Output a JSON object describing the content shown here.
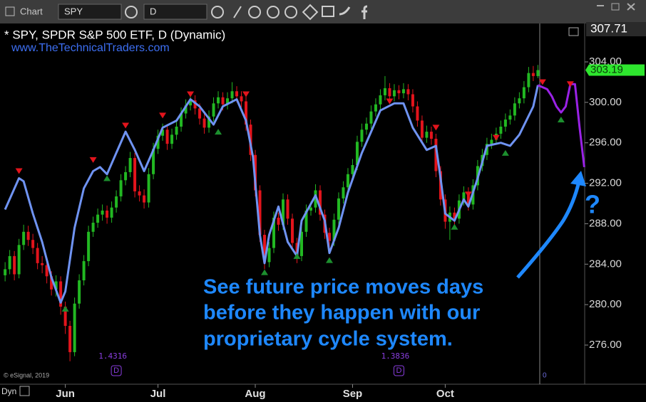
{
  "header": {
    "app": "Chart",
    "symbol": "SPY",
    "interval": "D"
  },
  "chart_data": {
    "type": "candlestick",
    "title": "* SPY, SPDR S&P 500 ETF, D (Dynamic)",
    "subtitle": "www.TheTechnicalTraders.com",
    "credit": "© eSignal, 2019",
    "mode": "Dyn",
    "annotation": [
      "See future price moves days",
      "before they happen with our",
      "proprietary cycle system."
    ],
    "question": "?",
    "studies": [
      {
        "label": "1.4316",
        "marker": "D",
        "x": 24
      },
      {
        "label": "1.3836",
        "marker": "D",
        "x": 85
      }
    ],
    "cursor_label": "0",
    "cursor_price": 307.71,
    "xlim": [
      -1.1,
      125.1
    ],
    "ylim": [
      272.13,
      307.8
    ],
    "xticks": [
      {
        "value": 13,
        "label": "Jun"
      },
      {
        "value": 33,
        "label": "Jul"
      },
      {
        "value": 54,
        "label": "Aug"
      },
      {
        "value": 75,
        "label": "Sep"
      },
      {
        "value": 95,
        "label": "Oct"
      }
    ],
    "yticks": [
      {
        "value": 276,
        "label": "276.00"
      },
      {
        "value": 280,
        "label": "280.00"
      },
      {
        "value": 284,
        "label": "284.00"
      },
      {
        "value": 288,
        "label": "288.00"
      },
      {
        "value": 292,
        "label": "292.00"
      },
      {
        "value": 296,
        "label": "296.00"
      },
      {
        "value": 300,
        "label": "300.00"
      },
      {
        "value": 304,
        "label": "304.00"
      }
    ],
    "grid": false,
    "up_color": "#22b822",
    "down_color": "#e3141c",
    "open": [
      282.9,
      283.5,
      284.8,
      283.0,
      285.9,
      287.2,
      286.4,
      285.6,
      284.1,
      283.9,
      282.8,
      281.5,
      282.3,
      279.8,
      277.9,
      275.3,
      280.1,
      282.4,
      284.3,
      287.2,
      288.1,
      288.9,
      289.3,
      288.6,
      289.6,
      290.7,
      292.3,
      293.1,
      294.5,
      291.2,
      290.8,
      290.1,
      292.9,
      295.4,
      296.7,
      297.3,
      295.9,
      296.8,
      297.6,
      298.9,
      299.7,
      300.2,
      299.4,
      298.4,
      297.5,
      298.6,
      299.9,
      300.5,
      299.8,
      300.4,
      301.1,
      300.6,
      300.1,
      297.8,
      294.8,
      291.3,
      286.9,
      284.2,
      285.6,
      288.6,
      287.9,
      290.4,
      288.5,
      286.1,
      284.8,
      287.2,
      289.3,
      289.6,
      291.3,
      288.9,
      287.1,
      286.3,
      288.4,
      290.5,
      291.6,
      292.9,
      293.8,
      296.1,
      297.3,
      297.9,
      299.1,
      299.8,
      300.7,
      301.4,
      300.6,
      301.2,
      300.9,
      301.3,
      300.8,
      299.6,
      298.2,
      296.5,
      297.1,
      296.4,
      293.2,
      290.4,
      288.2,
      289.1,
      288.5,
      290.3,
      291.1,
      289.9,
      291.8,
      293.7,
      294.8,
      295.9,
      296.3,
      296.9,
      297.6,
      298.3,
      298.7,
      299.9,
      300.4,
      301.5,
      302.9,
      302.6
    ],
    "high": [
      284.2,
      285.4,
      285.3,
      286.5,
      287.9,
      287.8,
      287.0,
      286.1,
      284.8,
      284.5,
      283.3,
      282.9,
      282.8,
      280.3,
      278.4,
      280.7,
      283.0,
      284.9,
      287.8,
      288.7,
      289.5,
      289.9,
      289.8,
      290.2,
      291.3,
      292.9,
      293.7,
      295.1,
      295.0,
      291.8,
      291.4,
      293.5,
      296.0,
      297.3,
      297.9,
      297.8,
      297.4,
      298.2,
      299.5,
      300.3,
      300.8,
      300.7,
      299.9,
      298.9,
      299.2,
      300.5,
      301.1,
      301.0,
      301.0,
      302.0,
      301.6,
      301.1,
      300.6,
      298.3,
      295.3,
      291.8,
      287.4,
      286.2,
      289.2,
      289.1,
      291.0,
      290.9,
      289.0,
      286.6,
      287.8,
      289.9,
      290.2,
      291.9,
      291.8,
      289.4,
      287.6,
      289.0,
      291.1,
      292.2,
      293.5,
      294.4,
      296.7,
      297.9,
      298.5,
      299.7,
      300.4,
      301.3,
      302.6,
      301.9,
      301.8,
      301.7,
      301.9,
      301.8,
      301.3,
      300.1,
      298.7,
      297.7,
      297.6,
      296.9,
      293.7,
      290.9,
      289.7,
      289.6,
      290.9,
      291.7,
      291.6,
      292.4,
      294.3,
      295.4,
      296.5,
      296.9,
      297.5,
      298.2,
      298.9,
      299.3,
      300.5,
      301.0,
      302.1,
      303.5,
      303.6,
      303.7
    ],
    "low": [
      282.3,
      283.0,
      282.4,
      282.6,
      285.4,
      285.8,
      285.0,
      283.5,
      283.1,
      282.1,
      280.9,
      280.8,
      279.0,
      277.1,
      274.4,
      274.9,
      279.6,
      281.9,
      283.8,
      286.7,
      287.6,
      288.3,
      288.0,
      288.1,
      289.1,
      290.2,
      291.8,
      292.6,
      290.6,
      290.2,
      289.5,
      289.6,
      292.4,
      294.9,
      296.2,
      295.3,
      295.4,
      296.3,
      297.1,
      298.4,
      299.2,
      298.8,
      297.8,
      296.9,
      297.0,
      298.1,
      299.4,
      299.2,
      299.3,
      299.9,
      300.0,
      299.5,
      297.2,
      294.2,
      290.7,
      286.2,
      283.5,
      283.7,
      285.1,
      287.3,
      287.4,
      287.9,
      285.5,
      284.1,
      284.3,
      286.7,
      288.8,
      289.1,
      288.3,
      286.5,
      285.3,
      285.8,
      287.9,
      290.0,
      291.1,
      292.4,
      293.3,
      295.6,
      296.8,
      297.4,
      298.6,
      299.3,
      300.2,
      300.0,
      300.1,
      300.3,
      300.4,
      300.2,
      299.0,
      297.6,
      295.9,
      296.0,
      295.8,
      292.6,
      289.8,
      287.5,
      286.4,
      287.8,
      288.0,
      289.8,
      289.3,
      289.4,
      291.3,
      293.2,
      294.3,
      295.4,
      295.8,
      296.4,
      297.1,
      297.8,
      298.2,
      299.4,
      299.9,
      301.0,
      302.1,
      302.4
    ],
    "close": [
      283.5,
      284.8,
      283.0,
      285.9,
      287.2,
      286.4,
      285.6,
      284.1,
      283.9,
      282.8,
      281.5,
      282.3,
      279.8,
      277.9,
      275.3,
      280.1,
      282.4,
      284.3,
      287.2,
      288.1,
      288.9,
      289.3,
      288.6,
      289.6,
      290.7,
      292.3,
      293.1,
      294.5,
      291.2,
      290.8,
      290.1,
      292.9,
      295.4,
      296.7,
      297.3,
      295.9,
      296.8,
      297.6,
      298.9,
      299.7,
      300.2,
      299.4,
      298.4,
      297.5,
      298.6,
      299.9,
      300.5,
      299.8,
      300.4,
      301.1,
      300.6,
      300.1,
      297.8,
      294.8,
      291.3,
      286.9,
      284.2,
      285.6,
      288.6,
      287.9,
      290.4,
      288.5,
      286.1,
      284.8,
      287.2,
      289.3,
      289.6,
      291.3,
      288.9,
      287.1,
      286.3,
      288.4,
      290.5,
      291.6,
      292.9,
      293.8,
      296.1,
      297.3,
      297.9,
      299.1,
      299.8,
      300.7,
      301.4,
      300.6,
      301.2,
      300.9,
      301.3,
      300.8,
      299.6,
      298.2,
      296.5,
      297.1,
      296.4,
      293.2,
      290.4,
      288.2,
      289.1,
      288.5,
      290.3,
      291.1,
      289.9,
      291.8,
      293.7,
      294.8,
      295.9,
      296.3,
      296.9,
      297.6,
      298.3,
      298.7,
      299.9,
      300.4,
      301.5,
      302.9,
      302.6,
      303.19
    ],
    "overlays": [
      {
        "color": "#6f93f2",
        "x": [
          0,
          3,
          4,
          6,
          8,
          10,
          12,
          13,
          15,
          17,
          19,
          20.5,
          22,
          24,
          26,
          28,
          30,
          32,
          34,
          37,
          40,
          42,
          45,
          47,
          50,
          52,
          53.5,
          55,
          56,
          57,
          59,
          61,
          63,
          64,
          67,
          69,
          70,
          72,
          74,
          77,
          79,
          81,
          84,
          86,
          88,
          91,
          93,
          94,
          95,
          97,
          99,
          100,
          102,
          104,
          107,
          109,
          111,
          114,
          115
        ],
        "values": [
          289.4,
          292.5,
          292.2,
          289,
          286.2,
          282.7,
          280.2,
          281.3,
          287.6,
          291.5,
          293.2,
          293.6,
          292.9,
          295,
          297.1,
          295.3,
          293.2,
          295.3,
          297.5,
          298.2,
          300.3,
          299.6,
          297.8,
          299.6,
          300.3,
          298.2,
          294.6,
          286.9,
          284.1,
          286.9,
          289.7,
          286.2,
          284.8,
          288.3,
          290.8,
          288.3,
          285.1,
          287.6,
          291.1,
          295,
          297.1,
          299.2,
          299.9,
          299.9,
          297.5,
          295.3,
          295.7,
          292.5,
          289,
          288.3,
          290.4,
          289.7,
          292.5,
          295.7,
          296,
          295.7,
          296.8,
          299.6,
          301.7
        ]
      },
      {
        "color": "#9a22e6",
        "x": [
          115,
          117,
          118,
          119,
          120,
          121,
          122,
          123,
          124,
          125
        ],
        "values": [
          301.7,
          301.3,
          300.6,
          299.6,
          299.0,
          299.6,
          301.8,
          301.8,
          297.5,
          293.6
        ]
      }
    ],
    "signals": [
      {
        "color": "#e3141c",
        "direction": "down",
        "x": [
          3,
          19,
          26,
          34,
          40,
          52,
          83,
          93,
          100,
          106,
          116,
          122
        ],
        "values": [
          293.2,
          294.3,
          297.7,
          298.7,
          300.8,
          300.8,
          300.1,
          297.5,
          290.9,
          296.5,
          302.0,
          301.8
        ]
      },
      {
        "color": "#1c8f2e",
        "direction": "up",
        "x": [
          13,
          22,
          46,
          56,
          63,
          70,
          97,
          108,
          120
        ],
        "values": [
          279.6,
          292.5,
          297.1,
          283.2,
          284.8,
          284.4,
          287.7,
          295.0,
          298.3
        ]
      }
    ]
  }
}
